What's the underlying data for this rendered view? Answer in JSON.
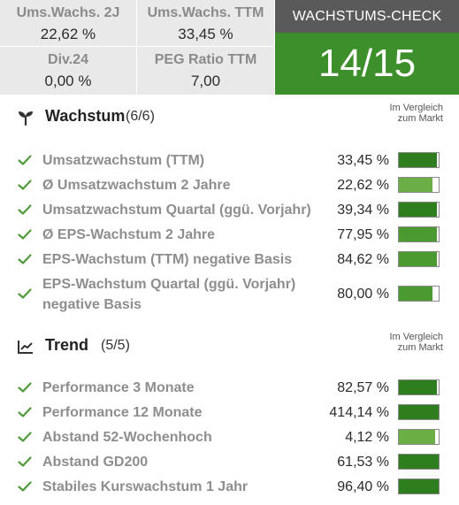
{
  "kpis": [
    {
      "label": "Ums.Wachs. 2J",
      "value": "22,62 %"
    },
    {
      "label": "Ums.Wachs. TTM",
      "value": "33,45 %"
    },
    {
      "label": "Div.24",
      "value": "0,00 %"
    },
    {
      "label": "PEG Ratio TTM",
      "value": "7,00"
    }
  ],
  "check": {
    "title": "WACHSTUMS-CHECK",
    "score": "14/15"
  },
  "compare_label": {
    "line1": "Im Vergleich",
    "line2": "zum Markt"
  },
  "colors": {
    "bar_dark": "#2e7d1e",
    "bar_mid": "#4a9a31",
    "bar_light": "#6aae45",
    "check": "#4f9a3a"
  },
  "sections": [
    {
      "icon": "sprout-icon",
      "title": "Wachstum",
      "count": "(6/6)",
      "rows": [
        {
          "name": "Umsatzwachstum (TTM)",
          "value": "33,45 %",
          "level": 0.95
        },
        {
          "name": "Ø Umsatzwachstum 2 Jahre",
          "value": "22,62 %",
          "level": 0.85
        },
        {
          "name": "Umsatzwachstum Quartal (ggü. Vorjahr)",
          "value": "39,34 %",
          "level": 0.95
        },
        {
          "name": "Ø EPS-Wachstum 2 Jahre",
          "value": "77,95 %",
          "level": 0.95
        },
        {
          "name": "EPS-Wachstum (TTM) negative Basis",
          "value": "84,62 %",
          "level": 0.95
        },
        {
          "name": "EPS-Wachstum Quartal (ggü. Vorjahr) negative Basis",
          "value": "80,00 %",
          "level": 0.85
        }
      ]
    },
    {
      "icon": "trend-chart-icon",
      "title": "Trend",
      "count": "(5/5)",
      "rows": [
        {
          "name": "Performance 3 Monate",
          "value": "82,57 %",
          "level": 0.95
        },
        {
          "name": "Performance 12 Monate",
          "value": "414,14 %",
          "level": 1.0
        },
        {
          "name": "Abstand 52-Wochenhoch",
          "value": "4,12 %",
          "level": 0.9
        },
        {
          "name": "Abstand GD200",
          "value": "61,53 %",
          "level": 1.0
        },
        {
          "name": "Stabiles Kurswachstum 1 Jahr",
          "value": "96,40 %",
          "level": 1.0
        }
      ]
    }
  ]
}
